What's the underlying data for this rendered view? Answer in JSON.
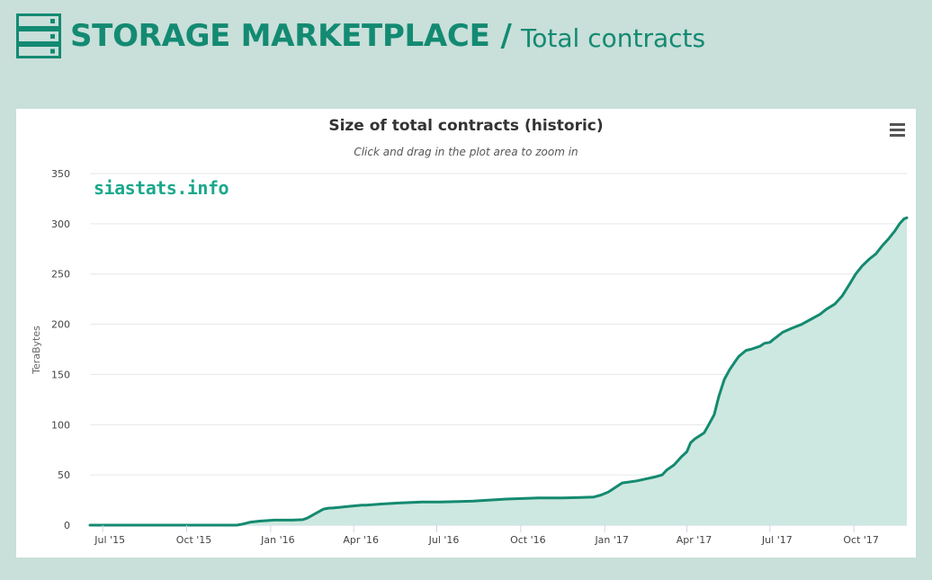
{
  "header": {
    "title": "STORAGE MARKETPLACE",
    "separator": "/",
    "subtitle": "Total contracts",
    "icon": "server-stack-icon"
  },
  "colors": {
    "accent": "#138a72",
    "line": "#148a70",
    "fill": "#cde8e0",
    "background": "#c9dfda"
  },
  "menu": {
    "icon": "hamburger-menu-icon"
  },
  "watermark": {
    "text": "siastats.info"
  },
  "chart_data": {
    "type": "area",
    "title": "Size of total contracts (historic)",
    "subtitle": "Click and drag in the plot area to zoom in",
    "ylabel": "TeraBytes",
    "xlabel": "",
    "ylim": [
      0,
      350
    ],
    "yticks": [
      0,
      50,
      100,
      150,
      200,
      250,
      300,
      350
    ],
    "xticks": [
      {
        "date": "2015-07-01",
        "label": "Jul '15"
      },
      {
        "date": "2015-10-01",
        "label": "Oct '15"
      },
      {
        "date": "2016-01-01",
        "label": "Jan '16"
      },
      {
        "date": "2016-04-01",
        "label": "Apr '16"
      },
      {
        "date": "2016-07-01",
        "label": "Jul '16"
      },
      {
        "date": "2016-10-01",
        "label": "Oct '16"
      },
      {
        "date": "2017-01-01",
        "label": "Jan '17"
      },
      {
        "date": "2017-04-01",
        "label": "Apr '17"
      },
      {
        "date": "2017-07-01",
        "label": "Jul '17"
      },
      {
        "date": "2017-10-01",
        "label": "Oct '17"
      }
    ],
    "x_range": [
      "2015-06-17",
      "2017-11-28"
    ],
    "grid": true,
    "legend": "none",
    "series": [
      {
        "x": [
          "2015-06-17",
          "2015-09-01",
          "2015-11-25",
          "2015-12-01",
          "2015-12-10",
          "2015-12-20",
          "2016-01-05",
          "2016-01-25",
          "2016-02-05",
          "2016-02-10",
          "2016-02-12",
          "2016-02-28",
          "2016-03-05",
          "2016-03-08",
          "2016-04-10",
          "2016-04-15",
          "2016-05-01",
          "2016-05-20",
          "2016-06-15",
          "2016-07-05",
          "2016-07-25",
          "2016-08-10",
          "2016-09-15",
          "2016-10-20",
          "2016-11-15",
          "2016-12-05",
          "2016-12-20",
          "2016-12-28",
          "2017-01-05",
          "2017-01-20",
          "2017-02-05",
          "2017-02-10",
          "2017-02-25",
          "2017-03-05",
          "2017-03-10",
          "2017-03-18",
          "2017-03-26",
          "2017-04-01",
          "2017-04-05",
          "2017-04-10",
          "2017-04-15",
          "2017-04-20",
          "2017-04-25",
          "2017-05-01",
          "2017-05-06",
          "2017-05-12",
          "2017-05-18",
          "2017-05-24",
          "2017-05-28",
          "2017-06-05",
          "2017-06-10",
          "2017-06-20",
          "2017-06-25",
          "2017-07-01",
          "2017-07-05",
          "2017-07-08",
          "2017-07-15",
          "2017-07-25",
          "2017-08-05",
          "2017-08-15",
          "2017-08-25",
          "2017-09-01",
          "2017-09-10",
          "2017-09-18",
          "2017-09-25",
          "2017-10-03",
          "2017-10-10",
          "2017-10-18",
          "2017-10-25",
          "2017-11-01",
          "2017-11-08",
          "2017-11-15",
          "2017-11-20",
          "2017-11-25",
          "2017-11-28"
        ],
        "values": [
          0,
          0,
          0,
          1,
          3,
          4,
          5,
          5,
          5.5,
          7,
          8,
          16,
          17,
          17,
          20,
          20,
          21,
          22,
          23,
          23,
          23.5,
          24,
          26,
          27,
          27,
          27.5,
          28,
          30,
          33,
          42,
          44,
          45,
          48,
          50,
          55,
          60,
          68,
          73,
          82,
          86,
          89,
          92,
          100,
          110,
          128,
          145,
          155,
          163,
          168,
          174,
          175,
          178,
          181,
          182,
          185,
          187,
          192,
          196,
          200,
          205,
          210,
          215,
          220,
          228,
          238,
          250,
          258,
          265,
          270,
          278,
          285,
          293,
          300,
          305,
          306
        ]
      }
    ]
  }
}
